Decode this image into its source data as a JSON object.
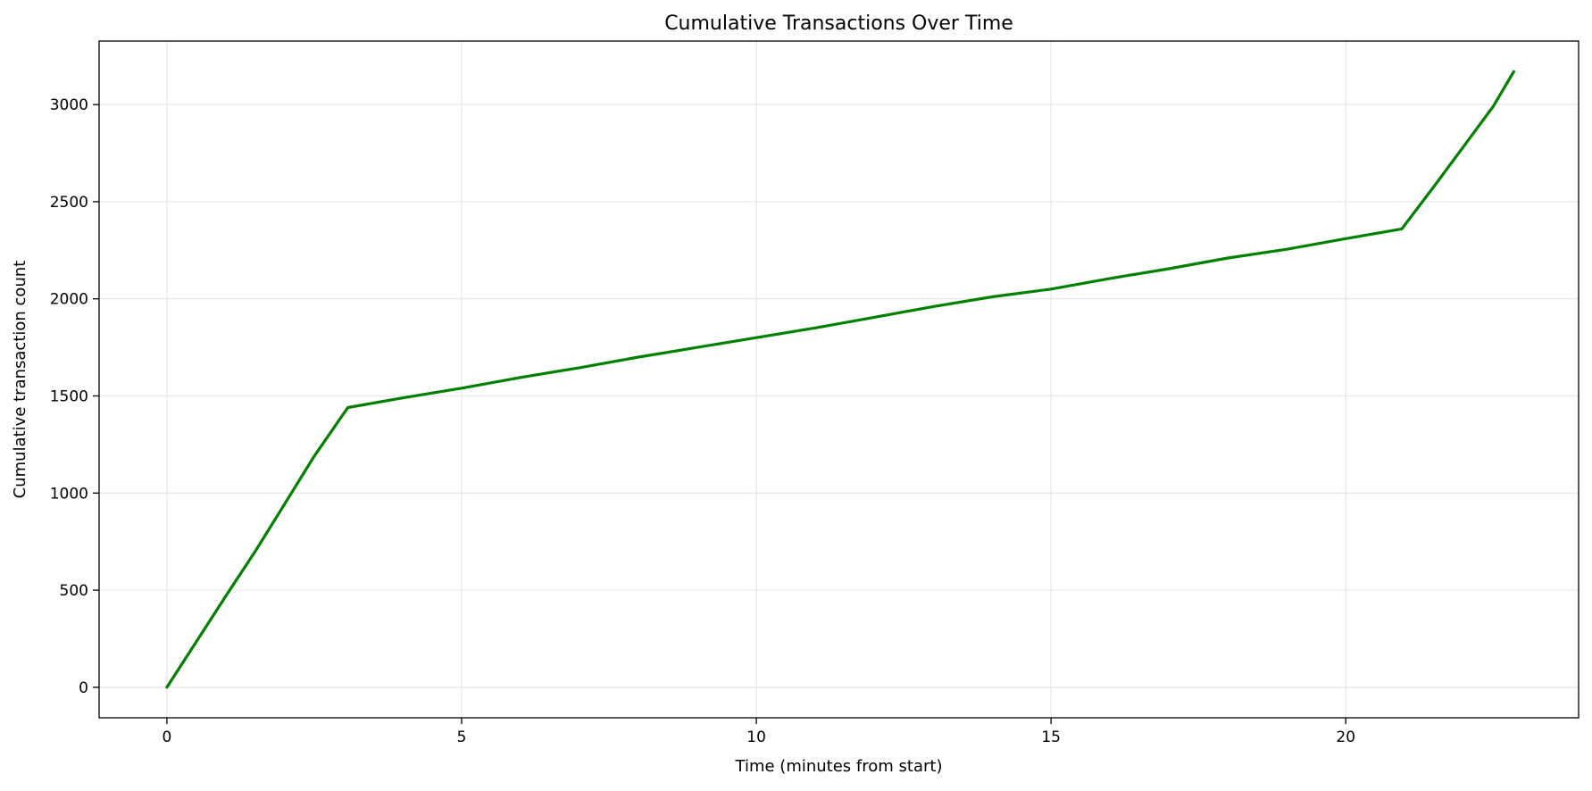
{
  "chart_data": {
    "type": "line",
    "title": "Cumulative Transactions Over Time",
    "xlabel": "Time (minutes from start)",
    "ylabel": "Cumulative transaction count",
    "xlim": [
      -1.15,
      23.95
    ],
    "ylim": [
      -157,
      3327
    ],
    "xticks": [
      0,
      5,
      10,
      15,
      20
    ],
    "yticks": [
      0,
      500,
      1000,
      1500,
      2000,
      2500,
      3000
    ],
    "grid": true,
    "colors": {
      "line": "#008000",
      "grid": "#e6e6e6",
      "axes": "#000000"
    },
    "series": [
      {
        "x": [
          0,
          0.5,
          1.0,
          1.5,
          2.0,
          2.5,
          3.07,
          4.0,
          5.0,
          6.0,
          7.0,
          8.0,
          9.0,
          10.0,
          11.0,
          12.0,
          13.0,
          14.0,
          15.0,
          16.0,
          17.0,
          18.0,
          19.0,
          20.0,
          20.95,
          21.5,
          22.0,
          22.5,
          22.85
        ],
        "y": [
          0,
          235,
          470,
          700,
          945,
          1190,
          1440,
          1490,
          1540,
          1595,
          1645,
          1700,
          1750,
          1800,
          1850,
          1905,
          1960,
          2010,
          2050,
          2105,
          2155,
          2210,
          2255,
          2310,
          2360,
          2580,
          2785,
          2990,
          3170
        ]
      }
    ]
  }
}
